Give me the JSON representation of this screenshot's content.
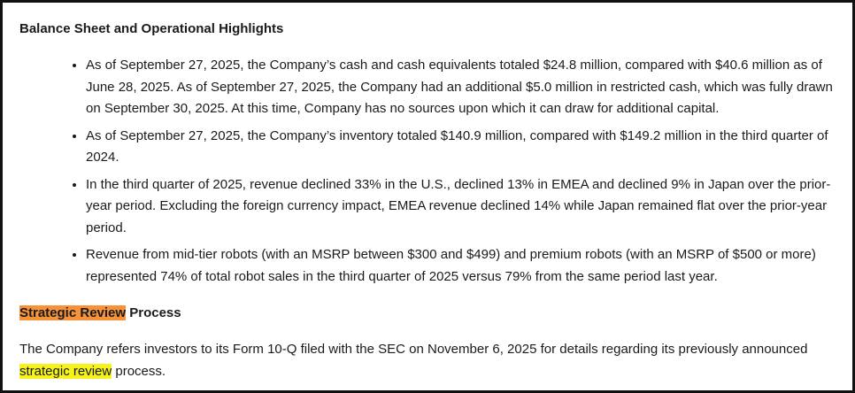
{
  "section1": {
    "title": "Balance Sheet and Operational Highlights",
    "bullets": [
      "As of September 27, 2025, the Company’s cash and cash equivalents totaled $24.8 million, compared with $40.6 million as of June 28, 2025. As of September 27, 2025, the Company had an additional $5.0 million in restricted cash, which was fully drawn on September 30, 2025. At this time, Company has no sources upon which it can draw for additional capital.",
      "As of September 27, 2025, the Company’s inventory totaled $140.9 million, compared with $149.2 million in the third quarter of 2024.",
      "In the third quarter of 2025, revenue declined 33% in the U.S., declined 13% in EMEA and declined 9% in Japan over the prior-year period. Excluding the foreign currency impact, EMEA revenue declined 14% while Japan remained flat over the prior-year period.",
      "Revenue from mid-tier robots (with an MSRP between $300 and $499) and premium robots (with an MSRP of $500 or more) represented 74% of total robot sales in the third quarter of 2025 versus 79% from the same period last year."
    ]
  },
  "section2": {
    "title_highlight": "Strategic Review",
    "title_rest": " Process",
    "paragraph": {
      "before": "The Company refers investors to its Form 10-Q filed with the SEC on November 6, 2025 for details regarding its previously announced ",
      "highlight": "strategic review",
      "after": " process."
    }
  }
}
